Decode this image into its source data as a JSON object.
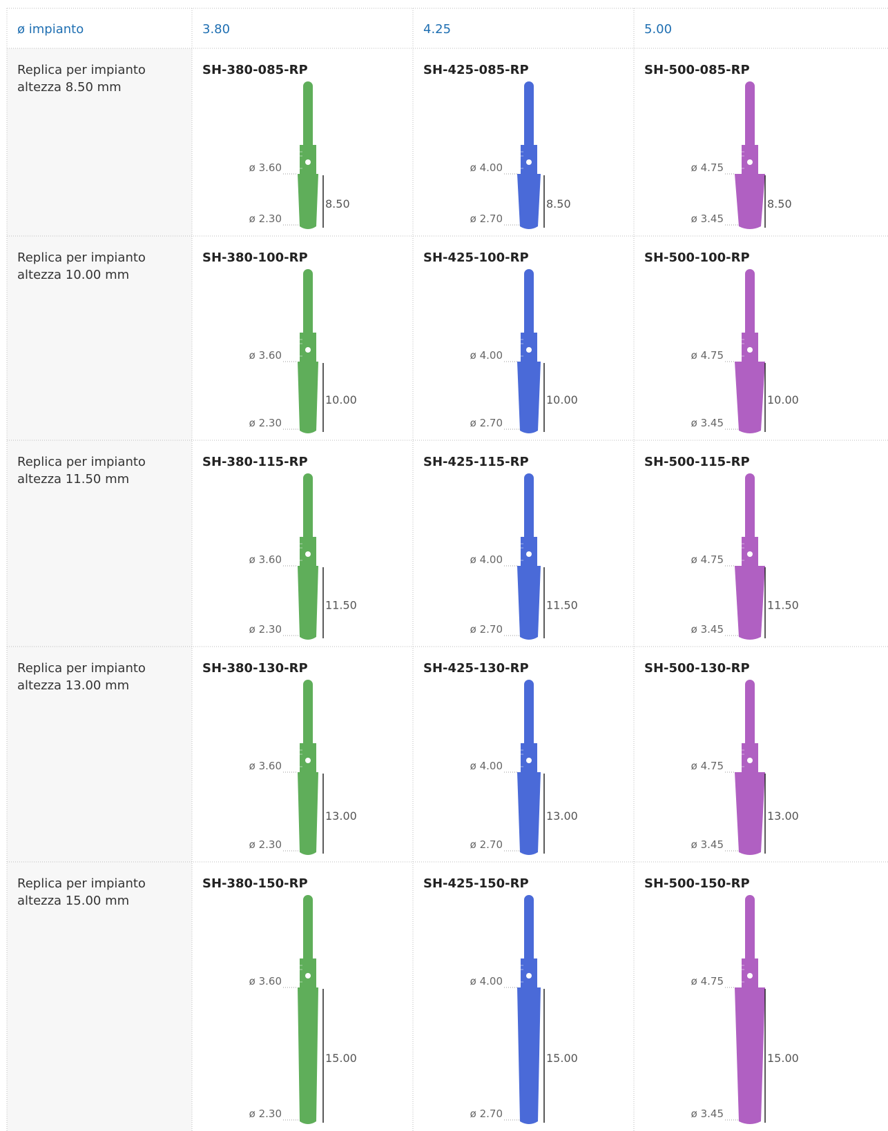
{
  "table": {
    "header": [
      "ø impianto",
      "3.80",
      "4.25",
      "5.00"
    ],
    "rows": [
      {
        "label": [
          "Replica per impianto",
          "altezza 8.50 mm"
        ],
        "cells": [
          {
            "code": "SH-380-085-RP",
            "top": "ø 3.60",
            "bottom": "ø 2.30",
            "height": "8.50"
          },
          {
            "code": "SH-425-085-RP",
            "top": "ø 4.00",
            "bottom": "ø 2.70",
            "height": "8.50"
          },
          {
            "code": "SH-500-085-RP",
            "top": "ø 4.75",
            "bottom": "ø 3.45",
            "height": "8.50"
          }
        ]
      },
      {
        "label": [
          "Replica per impianto",
          "altezza 10.00 mm"
        ],
        "cells": [
          {
            "code": "SH-380-100-RP",
            "top": "ø 3.60",
            "bottom": "ø 2.30",
            "height": "10.00"
          },
          {
            "code": "SH-425-100-RP",
            "top": "ø 4.00",
            "bottom": "ø 2.70",
            "height": "10.00"
          },
          {
            "code": "SH-500-100-RP",
            "top": "ø 4.75",
            "bottom": "ø 3.45",
            "height": "10.00"
          }
        ]
      },
      {
        "label": [
          "Replica per impianto",
          "altezza 11.50 mm"
        ],
        "cells": [
          {
            "code": "SH-380-115-RP",
            "top": "ø 3.60",
            "bottom": "ø 2.30",
            "height": "11.50"
          },
          {
            "code": "SH-425-115-RP",
            "top": "ø 4.00",
            "bottom": "ø 2.70",
            "height": "11.50"
          },
          {
            "code": "SH-500-115-RP",
            "top": "ø 4.75",
            "bottom": "ø 3.45",
            "height": "11.50"
          }
        ]
      },
      {
        "label": [
          "Replica per impianto",
          "altezza 13.00 mm"
        ],
        "cells": [
          {
            "code": "SH-380-130-RP",
            "top": "ø 3.60",
            "bottom": "ø 2.30",
            "height": "13.00"
          },
          {
            "code": "SH-425-130-RP",
            "top": "ø 4.00",
            "bottom": "ø 2.70",
            "height": "13.00"
          },
          {
            "code": "SH-500-130-RP",
            "top": "ø 4.75",
            "bottom": "ø 3.45",
            "height": "13.00"
          }
        ]
      },
      {
        "label": [
          "Replica per impianto",
          "altezza 15.00 mm"
        ],
        "cells": [
          {
            "code": "SH-380-150-RP",
            "top": "ø 3.60",
            "bottom": "ø 2.30",
            "height": "15.00"
          },
          {
            "code": "SH-425-150-RP",
            "top": "ø 4.00",
            "bottom": "ø 2.70",
            "height": "15.00"
          },
          {
            "code": "SH-500-150-RP",
            "top": "ø 4.75",
            "bottom": "ø 3.45",
            "height": "15.00"
          }
        ]
      }
    ]
  }
}
